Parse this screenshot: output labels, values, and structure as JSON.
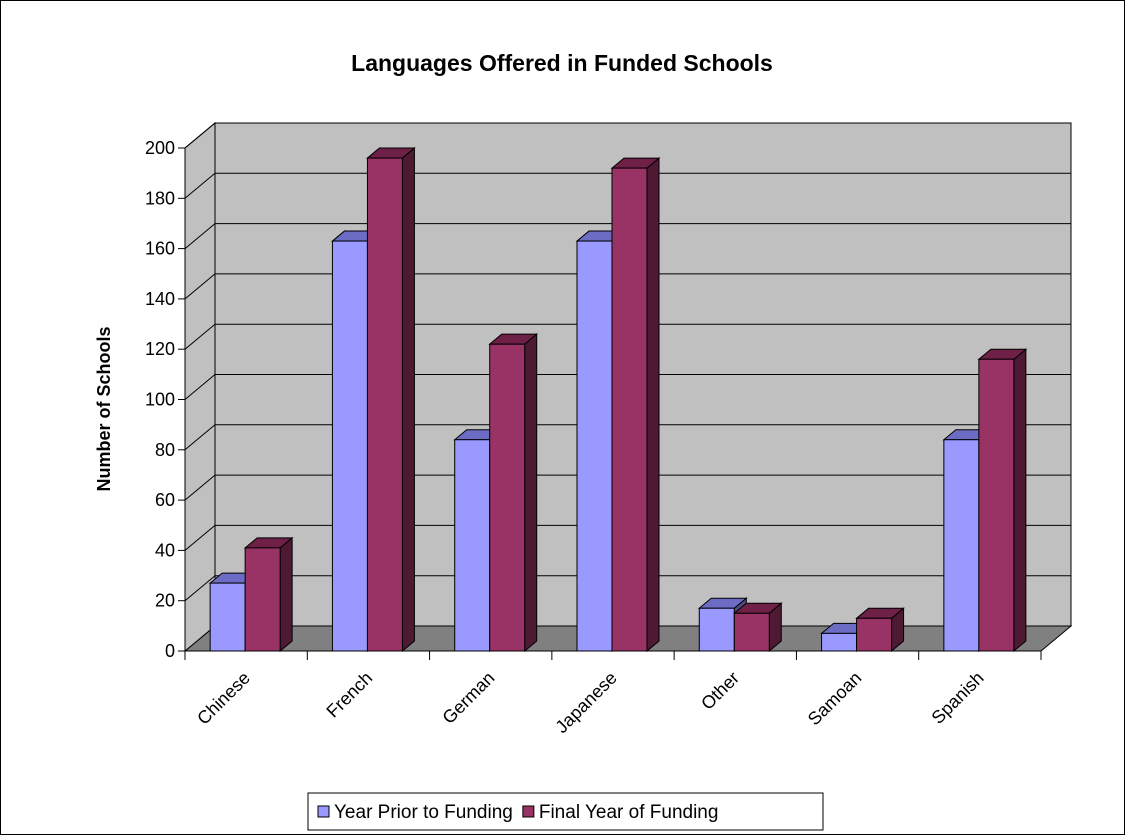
{
  "chart_data": {
    "type": "bar",
    "title": "Languages Offered in Funded Schools",
    "xlabel": "",
    "ylabel": "Number of Schools",
    "ylim": [
      0,
      200
    ],
    "yticks": [
      0,
      20,
      40,
      60,
      80,
      100,
      120,
      140,
      160,
      180,
      200
    ],
    "categories": [
      "Chinese",
      "French",
      "German",
      "Japanese",
      "Other",
      "Samoan",
      "Spanish"
    ],
    "series": [
      {
        "name": "Year Prior to Funding",
        "values": [
          27,
          163,
          84,
          163,
          17,
          7,
          84
        ]
      },
      {
        "name": "Final Year of Funding",
        "values": [
          41,
          196,
          122,
          192,
          15,
          13,
          116
        ]
      }
    ],
    "grid": true,
    "legend_position": "bottom",
    "colors": {
      "series_front": [
        "#9999ff",
        "#993366"
      ],
      "series_top": [
        "#6c6cc4",
        "#6e2047"
      ],
      "series_side": [
        "#4d4d80",
        "#4d1933"
      ],
      "wall": "#c0c0c0",
      "floor": "#808080"
    }
  }
}
